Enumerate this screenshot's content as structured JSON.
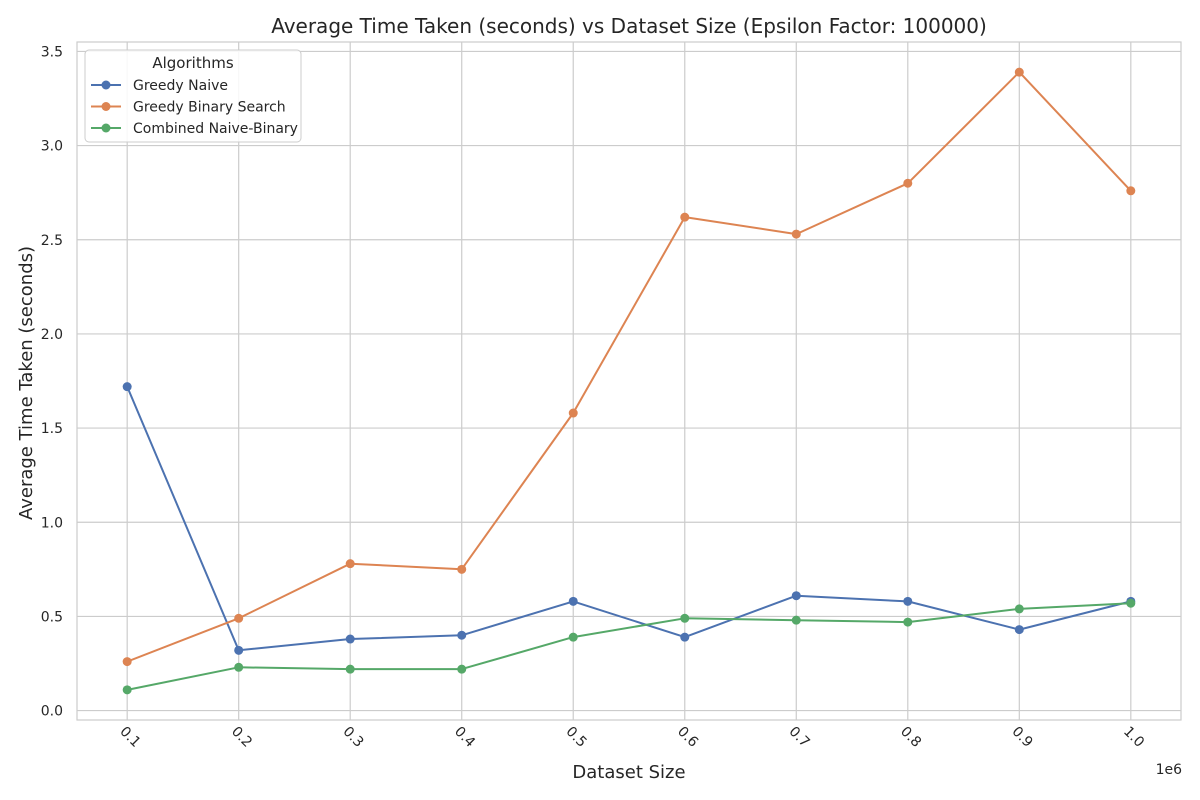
{
  "chart_data": {
    "type": "line",
    "title": "Average Time Taken (seconds) vs Dataset Size (Epsilon Factor: 100000)",
    "xlabel": "Dataset Size",
    "ylabel": "Average Time Taken (seconds)",
    "x_offset_label": "1e6",
    "x": [
      100000,
      200000,
      300000,
      400000,
      500000,
      600000,
      700000,
      800000,
      900000,
      1000000
    ],
    "x_tick_labels": [
      "0.1",
      "0.2",
      "0.3",
      "0.4",
      "0.5",
      "0.6",
      "0.7",
      "0.8",
      "0.9",
      "1.0"
    ],
    "y_ticks": [
      0.0,
      0.5,
      1.0,
      1.5,
      2.0,
      2.5,
      3.0,
      3.5
    ],
    "y_tick_labels": [
      "0.0",
      "0.5",
      "1.0",
      "1.5",
      "2.0",
      "2.5",
      "3.0",
      "3.5"
    ],
    "xlim": [
      55000,
      1045000
    ],
    "ylim": [
      -0.05,
      3.55
    ],
    "grid": true,
    "legend": {
      "title": "Algorithms",
      "placement": "top-left"
    },
    "series": [
      {
        "name": "Greedy Naive",
        "color": "#4c72b0",
        "values": [
          1.72,
          0.32,
          0.38,
          0.4,
          0.58,
          0.39,
          0.61,
          0.58,
          0.43,
          0.58
        ]
      },
      {
        "name": "Greedy Binary Search",
        "color": "#dd8452",
        "values": [
          0.26,
          0.49,
          0.78,
          0.75,
          1.58,
          2.62,
          2.53,
          2.8,
          3.39,
          2.76
        ]
      },
      {
        "name": "Combined Naive-Binary",
        "color": "#55a868",
        "values": [
          0.11,
          0.23,
          0.22,
          0.22,
          0.39,
          0.49,
          0.48,
          0.47,
          0.54,
          0.57
        ]
      }
    ]
  }
}
